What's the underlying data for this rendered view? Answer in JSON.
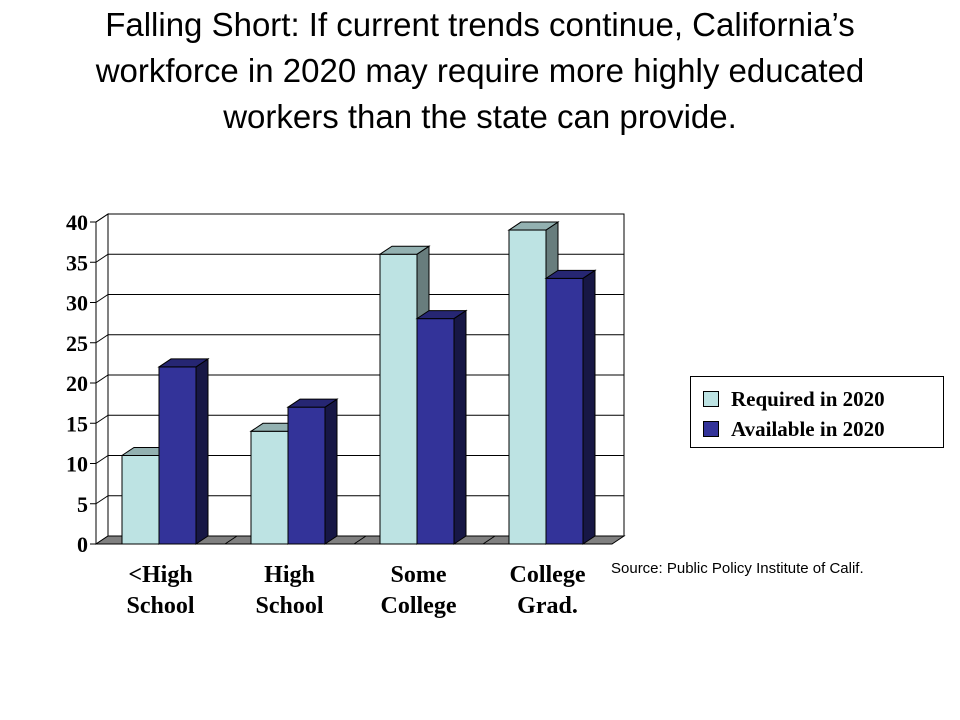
{
  "page": {
    "title": "Falling Short: If current trends continue, California’s workforce in 2020 may require more highly educated workers than the state can provide.",
    "source": "Source: Public Policy Institute of Calif."
  },
  "chart_data": {
    "type": "bar",
    "categories": [
      "<High School",
      "High School",
      "Some College",
      "College Grad."
    ],
    "category_lines": [
      [
        "<High",
        "School"
      ],
      [
        "High",
        "School"
      ],
      [
        "Some",
        "College"
      ],
      [
        "College",
        "Grad."
      ]
    ],
    "series": [
      {
        "name": "Required in 2020",
        "values": [
          11,
          14,
          36,
          39
        ],
        "color": "#bde3e3"
      },
      {
        "name": "Available in 2020",
        "values": [
          22,
          17,
          28,
          33
        ],
        "color": "#333399"
      }
    ],
    "ylim": [
      0,
      40
    ],
    "yticks": [
      0,
      5,
      10,
      15,
      20,
      25,
      30,
      35,
      40
    ],
    "grid": true,
    "legend": "right"
  }
}
